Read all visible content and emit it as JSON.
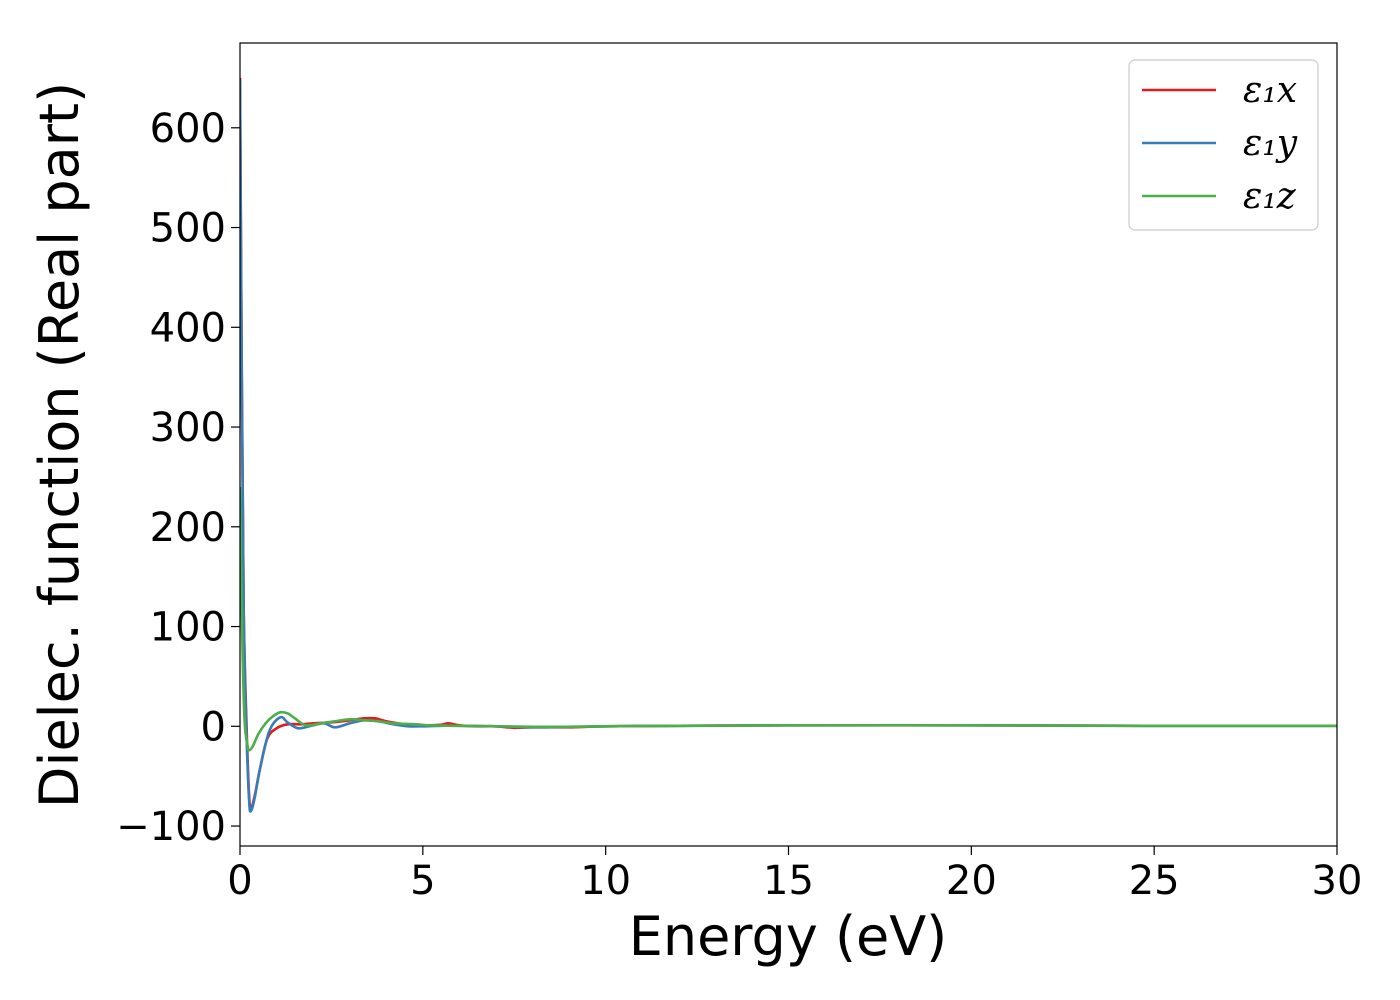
{
  "chart_data": {
    "type": "line",
    "title": "",
    "xlabel": "Energy (eV)",
    "ylabel": "Dielec. function (Real part)",
    "xlim": [
      0,
      30
    ],
    "ylim": [
      -120,
      685
    ],
    "xticks": [
      0,
      5,
      10,
      15,
      20,
      25,
      30
    ],
    "xtick_labels": [
      "0",
      "5",
      "10",
      "15",
      "20",
      "25",
      "30"
    ],
    "yticks": [
      -100,
      0,
      100,
      200,
      300,
      400,
      500,
      600
    ],
    "ytick_labels": [
      "−100",
      "0",
      "100",
      "200",
      "300",
      "400",
      "500",
      "600"
    ],
    "grid": false,
    "legend_position": "top-right",
    "series": [
      {
        "name": "ε₁x",
        "color": "#e41a1c",
        "points": [
          [
            0,
            650
          ],
          [
            0.05,
            350
          ],
          [
            0.1,
            120
          ],
          [
            0.18,
            0
          ],
          [
            0.25,
            -70
          ],
          [
            0.3,
            -82
          ],
          [
            0.4,
            -70
          ],
          [
            0.55,
            -42
          ],
          [
            0.75,
            -12
          ],
          [
            1.0,
            -2
          ],
          [
            1.3,
            2
          ],
          [
            1.7,
            2
          ],
          [
            2.0,
            3
          ],
          [
            2.5,
            4
          ],
          [
            3.0,
            6
          ],
          [
            3.4,
            8
          ],
          [
            3.7,
            8
          ],
          [
            4.0,
            5
          ],
          [
            4.5,
            2
          ],
          [
            5.0,
            1
          ],
          [
            5.5,
            1.5
          ],
          [
            5.7,
            3
          ],
          [
            6.0,
            1
          ],
          [
            6.5,
            0
          ],
          [
            7.0,
            0
          ],
          [
            7.5,
            -1.5
          ],
          [
            8.0,
            -1
          ],
          [
            9.0,
            -1
          ],
          [
            10,
            0
          ],
          [
            12,
            0.5
          ],
          [
            15,
            1
          ],
          [
            18,
            1
          ],
          [
            20,
            1
          ],
          [
            25,
            0.5
          ],
          [
            30,
            0.5
          ]
        ]
      },
      {
        "name": "ε₁y",
        "color": "#377eb8",
        "points": [
          [
            0,
            648
          ],
          [
            0.05,
            340
          ],
          [
            0.1,
            115
          ],
          [
            0.18,
            -10
          ],
          [
            0.25,
            -75
          ],
          [
            0.3,
            -85
          ],
          [
            0.4,
            -72
          ],
          [
            0.55,
            -42
          ],
          [
            0.8,
            -5
          ],
          [
            1.1,
            9
          ],
          [
            1.3,
            4
          ],
          [
            1.6,
            -2
          ],
          [
            2.0,
            1
          ],
          [
            2.3,
            3
          ],
          [
            2.6,
            -1
          ],
          [
            3.0,
            3
          ],
          [
            3.4,
            6
          ],
          [
            3.8,
            5
          ],
          [
            4.2,
            2
          ],
          [
            4.6,
            0
          ],
          [
            5.0,
            0
          ],
          [
            5.5,
            0.5
          ],
          [
            6.0,
            0.5
          ],
          [
            7.0,
            0
          ],
          [
            8.0,
            -1
          ],
          [
            9.0,
            -0.5
          ],
          [
            10,
            0
          ],
          [
            12,
            0.5
          ],
          [
            15,
            1
          ],
          [
            20,
            1
          ],
          [
            25,
            0.5
          ],
          [
            30,
            0.5
          ]
        ]
      },
      {
        "name": "ε₁z",
        "color": "#4daf4a",
        "points": [
          [
            0,
            240
          ],
          [
            0.05,
            110
          ],
          [
            0.12,
            10
          ],
          [
            0.2,
            -18
          ],
          [
            0.25,
            -24
          ],
          [
            0.35,
            -20
          ],
          [
            0.5,
            -8
          ],
          [
            0.7,
            3
          ],
          [
            0.9,
            10
          ],
          [
            1.1,
            14
          ],
          [
            1.3,
            13
          ],
          [
            1.5,
            8
          ],
          [
            1.8,
            1
          ],
          [
            2.2,
            3
          ],
          [
            2.6,
            5
          ],
          [
            3.0,
            7
          ],
          [
            3.4,
            6
          ],
          [
            3.8,
            5
          ],
          [
            4.2,
            3
          ],
          [
            4.8,
            2
          ],
          [
            5.2,
            1
          ],
          [
            6.0,
            0.5
          ],
          [
            7.0,
            0
          ],
          [
            8.0,
            -0.5
          ],
          [
            9.0,
            -0.5
          ],
          [
            10,
            0
          ],
          [
            12,
            0.5
          ],
          [
            15,
            1
          ],
          [
            20,
            1
          ],
          [
            25,
            0.5
          ],
          [
            30,
            0.5
          ]
        ]
      }
    ]
  }
}
